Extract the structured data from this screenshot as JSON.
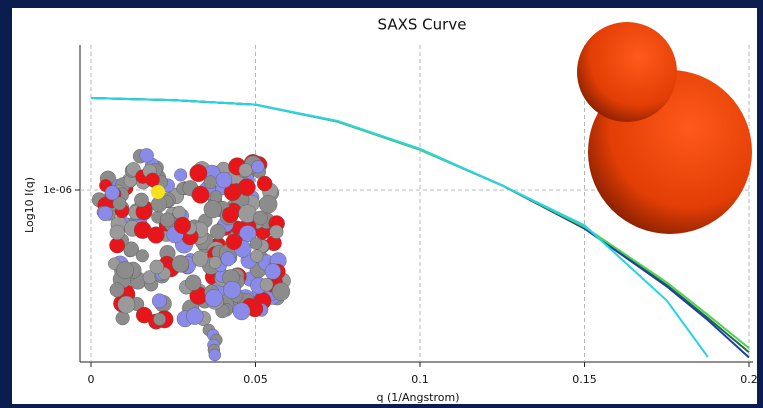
{
  "chart_data": {
    "type": "line",
    "title": "SAXS Curve",
    "x_label": "q (1/Angstrom)",
    "y_label": "Log10 I(q)",
    "x": [
      0,
      0.025,
      0.05,
      0.075,
      0.1,
      0.125,
      0.15,
      0.175,
      0.1875,
      0.2
    ],
    "series": [
      {
        "color": "#1f6b4a",
        "values": [
          2.19e-06,
          2.15e-06,
          2.07e-06,
          1.79e-06,
          1.41e-06,
          1.04e-06,
          7.23e-07,
          4.45e-07,
          3.36e-07,
          2.51e-07
        ]
      },
      {
        "color": "#1c3fa8",
        "values": [
          2.19e-06,
          2.15e-06,
          2.07e-06,
          1.79e-06,
          1.41e-06,
          1.04e-06,
          7.2e-07,
          4.4e-07,
          3.3e-07,
          2.4e-07
        ]
      },
      {
        "color": "#4fd24a",
        "values": [
          2.19e-06,
          2.15e-06,
          2.07e-06,
          1.79e-06,
          1.41e-06,
          1.04e-06,
          7.3e-07,
          4.55e-07,
          3.45e-07,
          2.6e-07
        ]
      },
      {
        "color": "#27d3e6",
        "values": [
          2.19e-06,
          2.15e-06,
          2.07e-06,
          1.8e-06,
          1.42e-06,
          1.04e-06,
          7.4e-07,
          3.9e-07,
          2.41e-07,
          null
        ]
      }
    ],
    "xlim": [
      0,
      0.2
    ],
    "xticks": [
      0,
      0.05,
      0.1,
      0.15,
      0.2
    ],
    "ylim": [
      2.31e-07,
      3.44e-06
    ],
    "yticks": [
      {
        "value": 1e-06,
        "label": "1e-06"
      }
    ],
    "log_y": true,
    "grid": true
  }
}
